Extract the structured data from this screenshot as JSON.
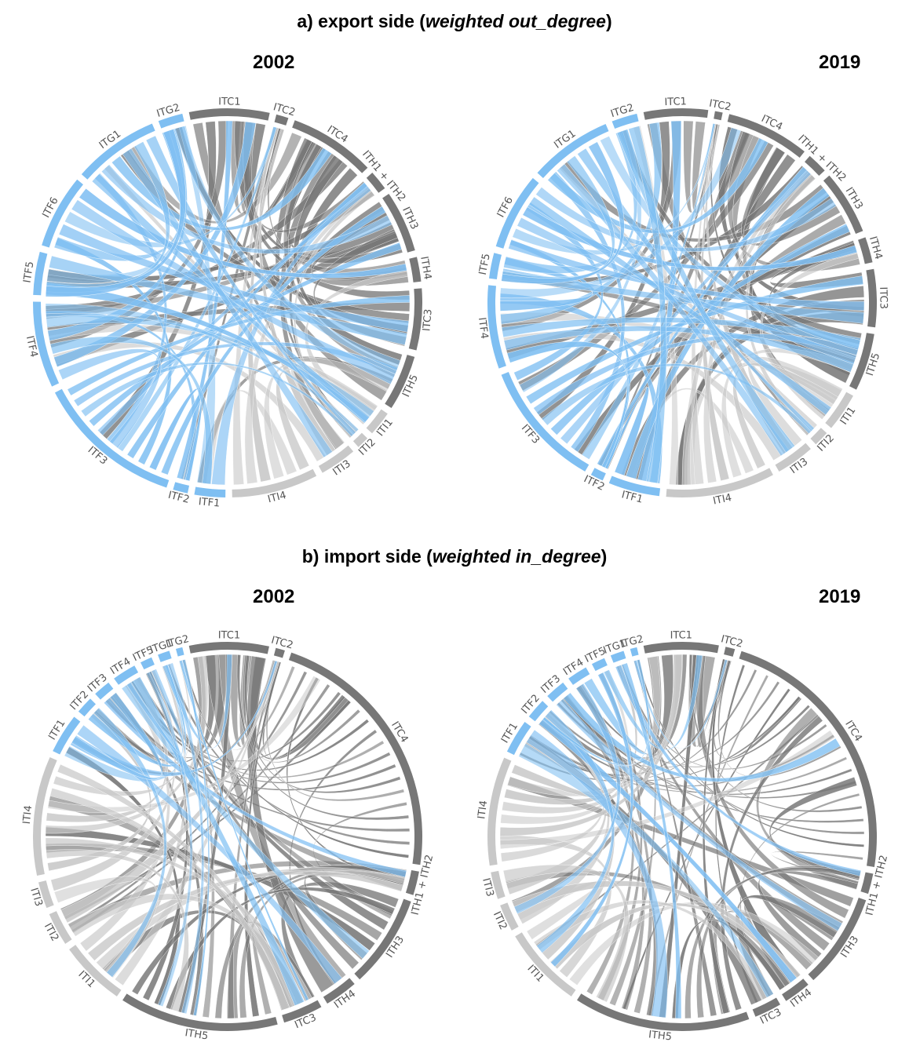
{
  "colors": {
    "ITC": "#777777",
    "ITH": "#777777",
    "ITF": "#7fbff2",
    "ITG": "#7fbff2",
    "ITI": "#c8c8c8"
  },
  "sections": [
    {
      "id": "a",
      "prefix": "a) export side (",
      "emph": "weighted out_degree",
      "suffix": ")"
    },
    {
      "id": "b",
      "prefix": "b) import side (",
      "emph": "weighted in_degree",
      "suffix": ")"
    }
  ],
  "diagrams": [
    {
      "id": "export-2002",
      "year": "2002",
      "nodes": [
        {
          "label": "ITC1",
          "weight": 6.5,
          "color": "ITC"
        },
        {
          "label": "ITC2",
          "weight": 1.0,
          "color": "ITC"
        },
        {
          "label": "ITC4",
          "weight": 7.0,
          "color": "ITC"
        },
        {
          "label": "ITH1 + ITH2",
          "weight": 1.6,
          "color": "ITH"
        },
        {
          "label": "ITH3",
          "weight": 5.0,
          "color": "ITH"
        },
        {
          "label": "ITH4",
          "weight": 2.0,
          "color": "ITH"
        },
        {
          "label": "ITC3",
          "weight": 5.0,
          "color": "ITC"
        },
        {
          "label": "ITH5",
          "weight": 4.5,
          "color": "ITH"
        },
        {
          "label": "ITI1",
          "weight": 2.0,
          "color": "ITI"
        },
        {
          "label": "ITI2",
          "weight": 1.0,
          "color": "ITI"
        },
        {
          "label": "ITI3",
          "weight": 3.0,
          "color": "ITI"
        },
        {
          "label": "ITI4",
          "weight": 7.0,
          "color": "ITI"
        },
        {
          "label": "ITF1",
          "weight": 2.5,
          "color": "ITF"
        },
        {
          "label": "ITF2",
          "weight": 1.2,
          "color": "ITF"
        },
        {
          "label": "ITF3",
          "weight": 12.0,
          "color": "ITF"
        },
        {
          "label": "ITF4",
          "weight": 7.0,
          "color": "ITF"
        },
        {
          "label": "ITF5",
          "weight": 3.5,
          "color": "ITF"
        },
        {
          "label": "ITF6",
          "weight": 6.0,
          "color": "ITF"
        },
        {
          "label": "ITG1",
          "weight": 7.0,
          "color": "ITG"
        },
        {
          "label": "ITG2",
          "weight": 2.0,
          "color": "ITG"
        }
      ]
    },
    {
      "id": "export-2019",
      "year": "2019",
      "nodes": [
        {
          "label": "ITC1",
          "weight": 5.0,
          "color": "ITC"
        },
        {
          "label": "ITC2",
          "weight": 0.6,
          "color": "ITC"
        },
        {
          "label": "ITC4",
          "weight": 6.5,
          "color": "ITC"
        },
        {
          "label": "ITH1 + ITH2",
          "weight": 1.6,
          "color": "ITH"
        },
        {
          "label": "ITH3",
          "weight": 5.0,
          "color": "ITH"
        },
        {
          "label": "ITH4",
          "weight": 2.0,
          "color": "ITH"
        },
        {
          "label": "ITC3",
          "weight": 4.5,
          "color": "ITC"
        },
        {
          "label": "ITH5",
          "weight": 4.5,
          "color": "ITH"
        },
        {
          "label": "ITI1",
          "weight": 3.0,
          "color": "ITI"
        },
        {
          "label": "ITI2",
          "weight": 1.2,
          "color": "ITI"
        },
        {
          "label": "ITI3",
          "weight": 3.0,
          "color": "ITI"
        },
        {
          "label": "ITI4",
          "weight": 8.5,
          "color": "ITI"
        },
        {
          "label": "ITF1",
          "weight": 4.0,
          "color": "ITF"
        },
        {
          "label": "ITF2",
          "weight": 1.0,
          "color": "ITF"
        },
        {
          "label": "ITF3",
          "weight": 10.0,
          "color": "ITF"
        },
        {
          "label": "ITF4",
          "weight": 6.5,
          "color": "ITF"
        },
        {
          "label": "ITF5",
          "weight": 2.0,
          "color": "ITF"
        },
        {
          "label": "ITF6",
          "weight": 6.0,
          "color": "ITF"
        },
        {
          "label": "ITG1",
          "weight": 6.5,
          "color": "ITG"
        },
        {
          "label": "ITG2",
          "weight": 2.0,
          "color": "ITG"
        }
      ]
    },
    {
      "id": "import-2002",
      "year": "2002",
      "nodes": [
        {
          "label": "ITC1",
          "weight": 6.0,
          "color": "ITC"
        },
        {
          "label": "ITC2",
          "weight": 0.7,
          "color": "ITC"
        },
        {
          "label": "ITC4",
          "weight": 20.0,
          "color": "ITC"
        },
        {
          "label": "ITH1 + ITH2",
          "weight": 1.8,
          "color": "ITH"
        },
        {
          "label": "ITH3",
          "weight": 7.0,
          "color": "ITH"
        },
        {
          "label": "ITH4",
          "weight": 2.5,
          "color": "ITH"
        },
        {
          "label": "ITC3",
          "weight": 3.0,
          "color": "ITC"
        },
        {
          "label": "ITH5",
          "weight": 12.0,
          "color": "ITH"
        },
        {
          "label": "ITI1",
          "weight": 5.0,
          "color": "ITI"
        },
        {
          "label": "ITI2",
          "weight": 2.5,
          "color": "ITI"
        },
        {
          "label": "ITI3",
          "weight": 2.0,
          "color": "ITI"
        },
        {
          "label": "ITI4",
          "weight": 9.0,
          "color": "ITI"
        },
        {
          "label": "ITF1",
          "weight": 3.0,
          "color": "ITF"
        },
        {
          "label": "ITF2",
          "weight": 1.3,
          "color": "ITF"
        },
        {
          "label": "ITF3",
          "weight": 1.3,
          "color": "ITF"
        },
        {
          "label": "ITF4",
          "weight": 1.8,
          "color": "ITF"
        },
        {
          "label": "ITF5",
          "weight": 0.9,
          "color": "ITF"
        },
        {
          "label": "ITG1",
          "weight": 0.9,
          "color": "ITG"
        },
        {
          "label": "ITG2",
          "weight": 0.5,
          "color": "ITG"
        }
      ]
    },
    {
      "id": "import-2019",
      "year": "2019",
      "nodes": [
        {
          "label": "ITC1",
          "weight": 5.5,
          "color": "ITC"
        },
        {
          "label": "ITC2",
          "weight": 0.7,
          "color": "ITC"
        },
        {
          "label": "ITC4",
          "weight": 20.0,
          "color": "ITC"
        },
        {
          "label": "ITH1 + ITH2",
          "weight": 1.5,
          "color": "ITH"
        },
        {
          "label": "ITH3",
          "weight": 7.0,
          "color": "ITH"
        },
        {
          "label": "ITH4",
          "weight": 2.0,
          "color": "ITH"
        },
        {
          "label": "ITC3",
          "weight": 2.0,
          "color": "ITC"
        },
        {
          "label": "ITH5",
          "weight": 13.0,
          "color": "ITH"
        },
        {
          "label": "ITI1",
          "weight": 6.0,
          "color": "ITI"
        },
        {
          "label": "ITI2",
          "weight": 2.0,
          "color": "ITI"
        },
        {
          "label": "ITI3",
          "weight": 2.0,
          "color": "ITI"
        },
        {
          "label": "ITI4",
          "weight": 8.0,
          "color": "ITI"
        },
        {
          "label": "ITF1",
          "weight": 2.5,
          "color": "ITF"
        },
        {
          "label": "ITF2",
          "weight": 1.5,
          "color": "ITF"
        },
        {
          "label": "ITF3",
          "weight": 1.5,
          "color": "ITF"
        },
        {
          "label": "ITF4",
          "weight": 1.5,
          "color": "ITF"
        },
        {
          "label": "ITF5",
          "weight": 1.0,
          "color": "ITF"
        },
        {
          "label": "ITG1",
          "weight": 1.0,
          "color": "ITG"
        },
        {
          "label": "ITG2",
          "weight": 0.5,
          "color": "ITG"
        }
      ]
    }
  ]
}
